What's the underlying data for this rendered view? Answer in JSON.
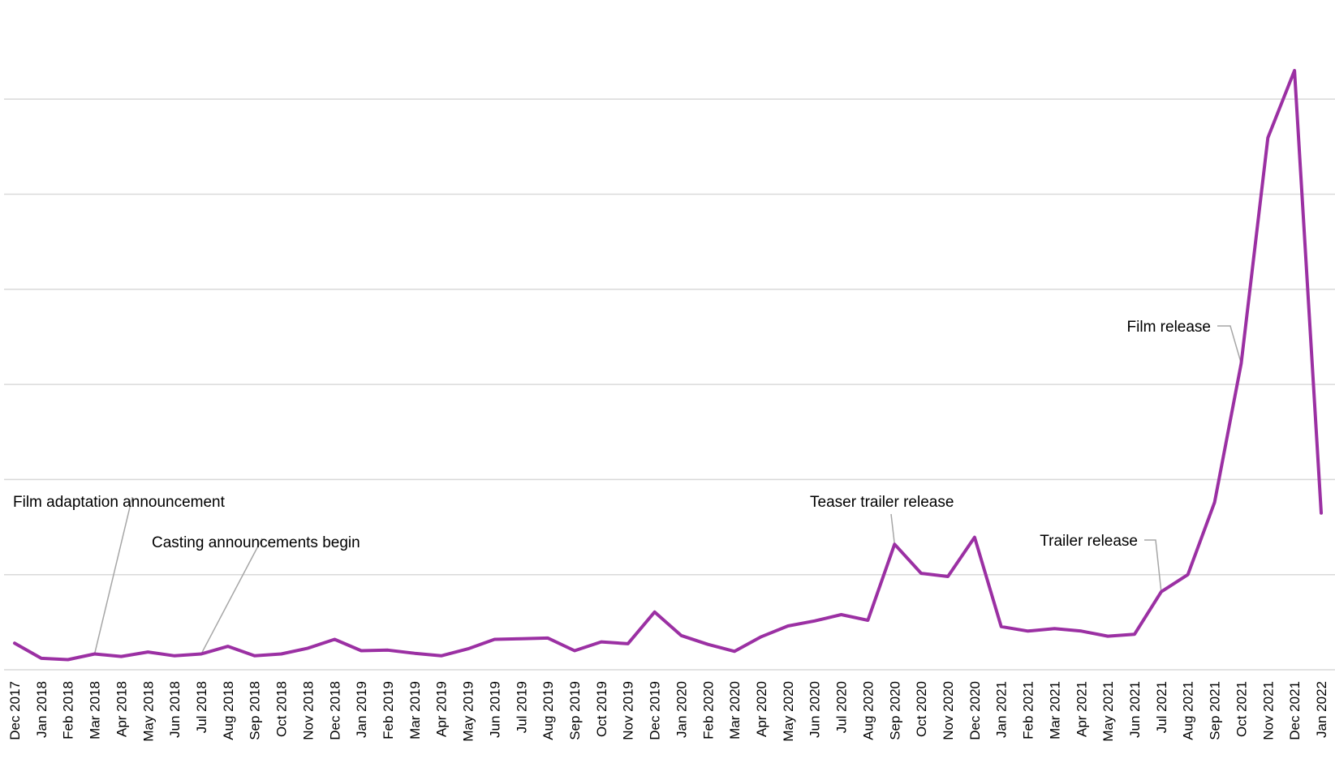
{
  "chart_data": {
    "type": "line",
    "title": "",
    "xlabel": "",
    "ylabel": "",
    "grid": true,
    "legend": "none",
    "ylim": [
      0,
      100
    ],
    "yticks": [
      0,
      15,
      30,
      45,
      60,
      75,
      90
    ],
    "categories": [
      "Dec 2017",
      "Jan 2018",
      "Feb 2018",
      "Mar 2018",
      "Apr 2018",
      "May 2018",
      "Jun 2018",
      "Jul 2018",
      "Aug 2018",
      "Sep 2018",
      "Oct 2018",
      "Nov 2018",
      "Dec 2018",
      "Jan 2019",
      "Feb 2019",
      "Mar 2019",
      "Apr 2019",
      "May 2019",
      "Jun 2019",
      "Jul 2019",
      "Aug 2019",
      "Sep 2019",
      "Oct 2019",
      "Nov 2019",
      "Dec 2019",
      "Jan 2020",
      "Feb 2020",
      "Mar 2020",
      "Apr 2020",
      "May 2020",
      "Jun 2020",
      "Jul 2020",
      "Aug 2020",
      "Sep 2020",
      "Oct 2020",
      "Nov 2020",
      "Dec 2020",
      "Jan 2021",
      "Feb 2021",
      "Mar 2021",
      "Apr 2021",
      "May 2021",
      "Jun 2021",
      "Jul 2021",
      "Aug 2021",
      "Sep 2021",
      "Oct 2021",
      "Nov 2021",
      "Dec 2021",
      "Jan 2022"
    ],
    "series": [
      {
        "color": "#9b30a3",
        "values": [
          4.2,
          1.8,
          1.6,
          2.5,
          2.1,
          2.8,
          2.2,
          2.5,
          3.7,
          2.2,
          2.5,
          3.4,
          4.8,
          3.0,
          3.1,
          2.6,
          2.2,
          3.3,
          4.8,
          4.9,
          5.0,
          3.0,
          4.4,
          4.1,
          9.1,
          5.4,
          4.0,
          2.9,
          5.2,
          6.9,
          7.7,
          8.7,
          7.8,
          19.8,
          15.2,
          14.7,
          20.9,
          6.8,
          6.1,
          6.5,
          6.1,
          5.3,
          5.6,
          12.3,
          15.0,
          26.4,
          48.3,
          83.9,
          94.5,
          24.7
        ]
      }
    ],
    "annotations": [
      {
        "text": "Film adaptation announcement",
        "category": "Mar 2018",
        "label_anchor": "above-left"
      },
      {
        "text": "Casting announcements begin",
        "category": "Jul 2018",
        "label_anchor": "above-right"
      },
      {
        "text": "Teaser trailer release",
        "category": "Sep 2020",
        "label_anchor": "above"
      },
      {
        "text": "Trailer release",
        "category": "Jul 2021",
        "label_anchor": "left"
      },
      {
        "text": "Film release",
        "category": "Oct 2021",
        "label_anchor": "left"
      }
    ]
  }
}
